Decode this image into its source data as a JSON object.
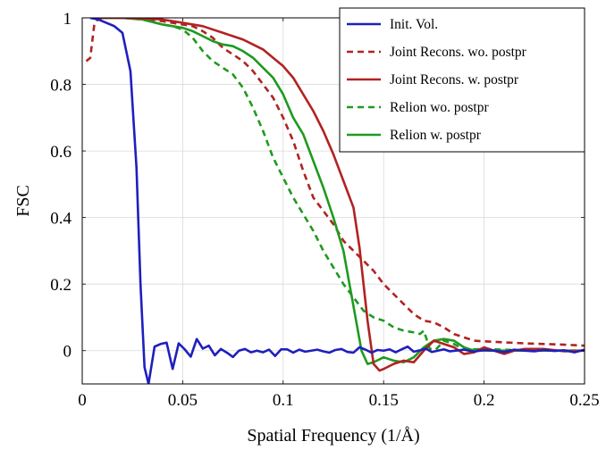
{
  "chart_data": {
    "type": "line",
    "title": "",
    "xlabel": "Spatial Frequency (1/Å)",
    "ylabel": "FSC",
    "xlim": [
      0,
      0.25
    ],
    "ylim": [
      -0.1,
      1.0
    ],
    "xticks": [
      0,
      0.05,
      0.1,
      0.15,
      0.2,
      0.25
    ],
    "xtick_labels": [
      "0",
      "0.05",
      "0.1",
      "0.15",
      "0.2",
      "0.25"
    ],
    "yticks": [
      0,
      0.2,
      0.4,
      0.6,
      0.8,
      1
    ],
    "ytick_labels": [
      "0",
      "0.2",
      "0.4",
      "0.6",
      "0.8",
      "1"
    ],
    "grid": true,
    "legend_position": "top-right",
    "series": [
      {
        "name": "Init. Vol.",
        "color": "#1f1fbf",
        "style": "solid",
        "x": [
          0.004,
          0.008,
          0.012,
          0.016,
          0.02,
          0.024,
          0.027,
          0.029,
          0.031,
          0.033,
          0.036,
          0.039,
          0.042,
          0.045,
          0.048,
          0.051,
          0.054,
          0.057,
          0.06,
          0.063,
          0.066,
          0.069,
          0.072,
          0.075,
          0.078,
          0.081,
          0.084,
          0.087,
          0.09,
          0.093,
          0.096,
          0.099,
          0.102,
          0.105,
          0.108,
          0.111,
          0.114,
          0.117,
          0.12,
          0.123,
          0.126,
          0.129,
          0.132,
          0.135,
          0.138,
          0.141,
          0.144,
          0.147,
          0.15,
          0.153,
          0.156,
          0.159,
          0.162,
          0.165,
          0.168,
          0.171,
          0.174,
          0.177,
          0.18,
          0.183,
          0.186,
          0.19,
          0.195,
          0.2,
          0.205,
          0.21,
          0.215,
          0.22,
          0.225,
          0.23,
          0.235,
          0.24,
          0.245,
          0.25
        ],
        "y": [
          1.0,
          0.995,
          0.985,
          0.975,
          0.955,
          0.84,
          0.55,
          0.2,
          -0.05,
          -0.1,
          0.012,
          0.02,
          0.024,
          -0.055,
          0.022,
          0.004,
          -0.018,
          0.035,
          0.006,
          0.015,
          -0.014,
          0.005,
          -0.006,
          -0.019,
          0.0,
          0.005,
          -0.005,
          0.0,
          -0.005,
          0.003,
          -0.016,
          0.004,
          0.004,
          -0.006,
          0.003,
          -0.003,
          0.0,
          0.003,
          -0.002,
          -0.006,
          0.002,
          0.005,
          -0.004,
          -0.006,
          0.01,
          0.003,
          -0.006,
          0.002,
          0.0,
          0.004,
          -0.005,
          0.004,
          0.012,
          -0.003,
          0.001,
          0.006,
          -0.004,
          0.0,
          0.004,
          -0.002,
          0.0,
          0.003,
          -0.003,
          0.002,
          0.0,
          -0.004,
          0.003,
          0.0,
          -0.002,
          0.002,
          -0.001,
          0.001,
          -0.005,
          0.003
        ]
      },
      {
        "name": "Joint Recons. wo. postpr",
        "color": "#b22222",
        "style": "dashed",
        "x": [
          0.002,
          0.004,
          0.006,
          0.008,
          0.012,
          0.02,
          0.03,
          0.04,
          0.05,
          0.055,
          0.06,
          0.065,
          0.07,
          0.075,
          0.08,
          0.085,
          0.09,
          0.095,
          0.1,
          0.105,
          0.11,
          0.115,
          0.12,
          0.125,
          0.13,
          0.135,
          0.14,
          0.145,
          0.15,
          0.155,
          0.16,
          0.165,
          0.17,
          0.175,
          0.18,
          0.185,
          0.19,
          0.195,
          0.2,
          0.21,
          0.22,
          0.23,
          0.24,
          0.25
        ],
        "y": [
          0.87,
          0.88,
          0.98,
          0.997,
          1.0,
          1.0,
          0.998,
          0.99,
          0.98,
          0.975,
          0.96,
          0.94,
          0.91,
          0.89,
          0.87,
          0.84,
          0.8,
          0.76,
          0.7,
          0.63,
          0.54,
          0.46,
          0.42,
          0.38,
          0.33,
          0.3,
          0.27,
          0.24,
          0.2,
          0.17,
          0.14,
          0.11,
          0.09,
          0.085,
          0.07,
          0.05,
          0.04,
          0.03,
          0.028,
          0.025,
          0.022,
          0.02,
          0.018,
          0.015
        ]
      },
      {
        "name": "Joint Recons. w. postpr",
        "color": "#b22222",
        "style": "solid",
        "x": [
          0.004,
          0.01,
          0.02,
          0.03,
          0.04,
          0.05,
          0.055,
          0.06,
          0.065,
          0.07,
          0.075,
          0.08,
          0.085,
          0.09,
          0.095,
          0.1,
          0.105,
          0.11,
          0.115,
          0.12,
          0.125,
          0.13,
          0.135,
          0.138,
          0.14,
          0.142,
          0.145,
          0.148,
          0.15,
          0.155,
          0.16,
          0.165,
          0.17,
          0.175,
          0.18,
          0.185,
          0.19,
          0.195,
          0.2,
          0.205,
          0.21,
          0.215,
          0.22,
          0.23,
          0.24,
          0.25
        ],
        "y": [
          1.0,
          1.0,
          1.0,
          0.998,
          0.995,
          0.985,
          0.98,
          0.975,
          0.965,
          0.955,
          0.945,
          0.935,
          0.92,
          0.905,
          0.88,
          0.855,
          0.82,
          0.77,
          0.72,
          0.66,
          0.59,
          0.51,
          0.43,
          0.31,
          0.2,
          0.09,
          -0.04,
          -0.06,
          -0.055,
          -0.04,
          -0.03,
          -0.035,
          0.0,
          0.03,
          0.02,
          0.01,
          -0.01,
          -0.005,
          0.01,
          0.0,
          -0.01,
          0.0,
          0.005,
          0.005,
          -0.002,
          0.0
        ]
      },
      {
        "name": "Relion wo. postpr",
        "color": "#1f9a1f",
        "style": "dashed",
        "x": [
          0.004,
          0.01,
          0.02,
          0.03,
          0.04,
          0.045,
          0.05,
          0.055,
          0.06,
          0.065,
          0.07,
          0.075,
          0.08,
          0.085,
          0.09,
          0.095,
          0.1,
          0.105,
          0.11,
          0.115,
          0.12,
          0.125,
          0.13,
          0.135,
          0.14,
          0.145,
          0.15,
          0.155,
          0.16,
          0.165,
          0.168,
          0.17,
          0.173,
          0.176,
          0.18,
          0.185,
          0.19,
          0.2,
          0.21,
          0.22,
          0.23,
          0.24,
          0.25
        ],
        "y": [
          1.0,
          1.0,
          1.0,
          0.995,
          0.98,
          0.975,
          0.965,
          0.94,
          0.9,
          0.87,
          0.85,
          0.83,
          0.79,
          0.73,
          0.66,
          0.58,
          0.52,
          0.46,
          0.41,
          0.36,
          0.3,
          0.25,
          0.2,
          0.16,
          0.12,
          0.1,
          0.09,
          0.07,
          0.06,
          0.055,
          0.05,
          0.06,
          0.005,
          0.003,
          0.03,
          0.02,
          0.003,
          0.005,
          0.003,
          0.001,
          0.0,
          0.0,
          0.0
        ]
      },
      {
        "name": "Relion w. postpr",
        "color": "#1f9a1f",
        "style": "solid",
        "x": [
          0.004,
          0.01,
          0.02,
          0.03,
          0.04,
          0.05,
          0.055,
          0.06,
          0.065,
          0.07,
          0.075,
          0.08,
          0.085,
          0.09,
          0.095,
          0.1,
          0.105,
          0.11,
          0.115,
          0.12,
          0.125,
          0.13,
          0.133,
          0.136,
          0.139,
          0.142,
          0.145,
          0.15,
          0.155,
          0.16,
          0.165,
          0.17,
          0.175,
          0.18,
          0.185,
          0.19,
          0.195,
          0.2,
          0.21,
          0.22,
          0.23,
          0.24,
          0.25
        ],
        "y": [
          1.0,
          1.0,
          1.0,
          0.995,
          0.98,
          0.97,
          0.96,
          0.945,
          0.93,
          0.92,
          0.915,
          0.9,
          0.88,
          0.85,
          0.82,
          0.77,
          0.7,
          0.65,
          0.57,
          0.49,
          0.4,
          0.3,
          0.2,
          0.1,
          0.0,
          -0.04,
          -0.035,
          -0.02,
          -0.03,
          -0.035,
          -0.02,
          0.01,
          0.03,
          0.035,
          0.03,
          0.01,
          0.0,
          0.0,
          0.0,
          0.0,
          0.0,
          0.0,
          0.0
        ]
      }
    ]
  }
}
